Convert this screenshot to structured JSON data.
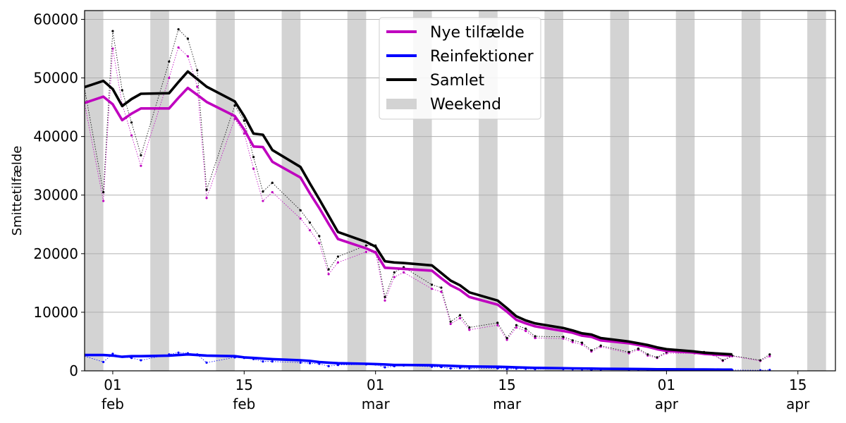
{
  "chart_data": {
    "type": "line",
    "title": "",
    "xlabel": "",
    "ylabel": "Smittetilfælde",
    "x_range": [
      "2022-01-29",
      "2022-04-19"
    ],
    "ylim": [
      0,
      61500
    ],
    "y_ticks": [
      0,
      10000,
      20000,
      30000,
      40000,
      50000,
      60000
    ],
    "x_ticks": [
      {
        "date": "2022-02-01",
        "day": "01",
        "month": "feb"
      },
      {
        "date": "2022-02-15",
        "day": "15",
        "month": "feb"
      },
      {
        "date": "2022-03-01",
        "day": "01",
        "month": "mar"
      },
      {
        "date": "2022-03-15",
        "day": "15",
        "month": "mar"
      },
      {
        "date": "2022-04-01",
        "day": "01",
        "month": "apr"
      },
      {
        "date": "2022-04-15",
        "day": "15",
        "month": "apr"
      }
    ],
    "grid": "horizontal",
    "legend_position": "top-center",
    "weekends": [
      "2022-01-29",
      "2022-02-05",
      "2022-02-12",
      "2022-02-19",
      "2022-02-26",
      "2022-03-05",
      "2022-03-12",
      "2022-03-19",
      "2022-03-26",
      "2022-04-02",
      "2022-04-09",
      "2022-04-16"
    ],
    "legend": [
      {
        "label": "Nye tilfælde",
        "color": "#bf00bf",
        "kind": "line"
      },
      {
        "label": "Reinfektioner",
        "color": "#0000ff",
        "kind": "line"
      },
      {
        "label": "Samlet",
        "color": "#000000",
        "kind": "line"
      },
      {
        "label": "Weekend",
        "color": "#d3d3d3",
        "kind": "patch"
      }
    ],
    "series": [
      {
        "name": "Nye tilfælde",
        "role": "rolling_mean",
        "color": "#bf00bf",
        "x": [
          "2022-01-28",
          "2022-01-31",
          "2022-02-01",
          "2022-02-02",
          "2022-02-03",
          "2022-02-04",
          "2022-02-07",
          "2022-02-08",
          "2022-02-09",
          "2022-02-10",
          "2022-02-11",
          "2022-02-14",
          "2022-02-15",
          "2022-02-16",
          "2022-02-17",
          "2022-02-18",
          "2022-02-21",
          "2022-02-22",
          "2022-02-23",
          "2022-02-24",
          "2022-02-25",
          "2022-02-28",
          "2022-03-01",
          "2022-03-02",
          "2022-03-03",
          "2022-03-04",
          "2022-03-07",
          "2022-03-08",
          "2022-03-09",
          "2022-03-10",
          "2022-03-11",
          "2022-03-14",
          "2022-03-15",
          "2022-03-16",
          "2022-03-17",
          "2022-03-18",
          "2022-03-21",
          "2022-03-22",
          "2022-03-23",
          "2022-03-24",
          "2022-03-25",
          "2022-03-28",
          "2022-03-29",
          "2022-03-30",
          "2022-03-31",
          "2022-04-01",
          "2022-04-04",
          "2022-04-05",
          "2022-04-06",
          "2022-04-07",
          "2022-04-08"
        ],
        "y": [
          45200,
          46800,
          45500,
          42800,
          43900,
          44800,
          44800,
          46600,
          48300,
          47100,
          45900,
          43500,
          41200,
          38300,
          38200,
          35700,
          33000,
          30300,
          27800,
          25100,
          22500,
          20900,
          20200,
          17600,
          17500,
          17400,
          17100,
          15800,
          14600,
          13800,
          12600,
          11300,
          10100,
          8700,
          8100,
          7600,
          6800,
          6500,
          6000,
          5800,
          5200,
          4700,
          4400,
          4100,
          3700,
          3400,
          3100,
          2900,
          2800,
          2700,
          2600
        ]
      },
      {
        "name": "Reinfektioner",
        "role": "rolling_mean",
        "color": "#0000ff",
        "x": [
          "2022-01-28",
          "2022-01-31",
          "2022-02-01",
          "2022-02-02",
          "2022-02-03",
          "2022-02-04",
          "2022-02-07",
          "2022-02-08",
          "2022-02-09",
          "2022-02-10",
          "2022-02-11",
          "2022-02-14",
          "2022-02-15",
          "2022-02-16",
          "2022-02-17",
          "2022-02-18",
          "2022-02-21",
          "2022-02-22",
          "2022-02-23",
          "2022-02-24",
          "2022-02-25",
          "2022-02-28",
          "2022-03-01",
          "2022-03-02",
          "2022-03-03",
          "2022-03-04",
          "2022-03-07",
          "2022-03-08",
          "2022-03-09",
          "2022-03-10",
          "2022-03-11",
          "2022-03-14",
          "2022-03-15",
          "2022-03-16",
          "2022-03-17",
          "2022-03-18",
          "2022-03-21",
          "2022-03-22",
          "2022-03-23",
          "2022-03-24",
          "2022-03-25",
          "2022-03-28",
          "2022-03-29",
          "2022-03-30",
          "2022-03-31",
          "2022-04-01",
          "2022-04-04",
          "2022-04-05",
          "2022-04-06",
          "2022-04-07",
          "2022-04-08"
        ],
        "y": [
          2700,
          2700,
          2600,
          2400,
          2500,
          2500,
          2600,
          2700,
          2800,
          2700,
          2600,
          2500,
          2300,
          2200,
          2100,
          2000,
          1800,
          1700,
          1500,
          1400,
          1300,
          1200,
          1150,
          1100,
          1000,
          1000,
          950,
          900,
          850,
          800,
          750,
          700,
          650,
          600,
          550,
          500,
          450,
          420,
          400,
          380,
          350,
          330,
          310,
          290,
          270,
          260,
          240,
          230,
          220,
          210,
          200
        ]
      },
      {
        "name": "Samlet",
        "role": "rolling_mean",
        "color": "#000000",
        "x": [
          "2022-01-28",
          "2022-01-31",
          "2022-02-01",
          "2022-02-02",
          "2022-02-03",
          "2022-02-04",
          "2022-02-07",
          "2022-02-08",
          "2022-02-09",
          "2022-02-10",
          "2022-02-11",
          "2022-02-14",
          "2022-02-15",
          "2022-02-16",
          "2022-02-17",
          "2022-02-18",
          "2022-02-21",
          "2022-02-22",
          "2022-02-23",
          "2022-02-24",
          "2022-02-25",
          "2022-02-28",
          "2022-03-01",
          "2022-03-02",
          "2022-03-03",
          "2022-03-04",
          "2022-03-07",
          "2022-03-08",
          "2022-03-09",
          "2022-03-10",
          "2022-03-11",
          "2022-03-14",
          "2022-03-15",
          "2022-03-16",
          "2022-03-17",
          "2022-03-18",
          "2022-03-21",
          "2022-03-22",
          "2022-03-23",
          "2022-03-24",
          "2022-03-25",
          "2022-03-28",
          "2022-03-29",
          "2022-03-30",
          "2022-03-31",
          "2022-04-01",
          "2022-04-04",
          "2022-04-05",
          "2022-04-06",
          "2022-04-07",
          "2022-04-08"
        ],
        "y": [
          47900,
          49500,
          48100,
          45200,
          46400,
          47300,
          47400,
          49300,
          51100,
          49800,
          48500,
          46000,
          43500,
          40500,
          40300,
          37700,
          34800,
          32000,
          29300,
          26500,
          23700,
          22000,
          21200,
          18700,
          18500,
          18400,
          18000,
          16700,
          15400,
          14600,
          13400,
          12000,
          10700,
          9300,
          8600,
          8100,
          7300,
          6900,
          6400,
          6200,
          5600,
          5000,
          4700,
          4400,
          4000,
          3700,
          3300,
          3100,
          3000,
          2900,
          2800
        ]
      },
      {
        "name": "Nye tilfælde",
        "role": "daily",
        "color": "#bf00bf",
        "x": [
          "2022-01-28",
          "2022-01-31",
          "2022-02-01",
          "2022-02-02",
          "2022-02-03",
          "2022-02-04",
          "2022-02-07",
          "2022-02-08",
          "2022-02-09",
          "2022-02-10",
          "2022-02-11",
          "2022-02-14",
          "2022-02-15",
          "2022-02-16",
          "2022-02-17",
          "2022-02-18",
          "2022-02-21",
          "2022-02-22",
          "2022-02-23",
          "2022-02-24",
          "2022-02-25",
          "2022-02-28",
          "2022-03-01",
          "2022-03-02",
          "2022-03-03",
          "2022-03-04",
          "2022-03-07",
          "2022-03-08",
          "2022-03-09",
          "2022-03-10",
          "2022-03-11",
          "2022-03-14",
          "2022-03-15",
          "2022-03-16",
          "2022-03-17",
          "2022-03-18",
          "2022-03-21",
          "2022-03-22",
          "2022-03-23",
          "2022-03-24",
          "2022-03-25",
          "2022-03-28",
          "2022-03-29",
          "2022-03-30",
          "2022-03-31",
          "2022-04-01",
          "2022-04-04",
          "2022-04-05",
          "2022-04-06",
          "2022-04-07",
          "2022-04-08",
          "2022-04-11",
          "2022-04-12"
        ],
        "y": [
          54000,
          29000,
          55000,
          45500,
          40200,
          35000,
          50000,
          55200,
          53700,
          48500,
          29500,
          43000,
          40500,
          34500,
          29000,
          30500,
          26000,
          24000,
          21800,
          16500,
          18500,
          20300,
          20300,
          12000,
          16000,
          16800,
          14000,
          13500,
          8000,
          9000,
          7000,
          7800,
          5300,
          7400,
          6800,
          5600,
          5500,
          4900,
          4500,
          3300,
          4100,
          3000,
          3600,
          2600,
          2200,
          3000,
          3000,
          3000,
          2700,
          1700,
          2500,
          1700,
          2500
        ]
      },
      {
        "name": "Reinfektioner",
        "role": "daily",
        "color": "#0000ff",
        "x": [
          "2022-01-28",
          "2022-01-31",
          "2022-02-01",
          "2022-02-02",
          "2022-02-03",
          "2022-02-04",
          "2022-02-07",
          "2022-02-08",
          "2022-02-09",
          "2022-02-10",
          "2022-02-11",
          "2022-02-14",
          "2022-02-15",
          "2022-02-16",
          "2022-02-17",
          "2022-02-18",
          "2022-02-21",
          "2022-02-22",
          "2022-02-23",
          "2022-02-24",
          "2022-02-25",
          "2022-02-28",
          "2022-03-01",
          "2022-03-02",
          "2022-03-03",
          "2022-03-04",
          "2022-03-07",
          "2022-03-08",
          "2022-03-09",
          "2022-03-10",
          "2022-03-11",
          "2022-03-14",
          "2022-03-15",
          "2022-03-16",
          "2022-03-17",
          "2022-03-18",
          "2022-03-21",
          "2022-03-22",
          "2022-03-23",
          "2022-03-24",
          "2022-03-25",
          "2022-03-28",
          "2022-03-29",
          "2022-03-30",
          "2022-03-31",
          "2022-04-01",
          "2022-04-04",
          "2022-04-05",
          "2022-04-06",
          "2022-04-07",
          "2022-04-08",
          "2022-04-11",
          "2022-04-12"
        ],
        "y": [
          3000,
          1500,
          2900,
          2400,
          2200,
          1800,
          2800,
          3100,
          3000,
          2800,
          1400,
          2300,
          2200,
          2000,
          1600,
          1600,
          1400,
          1300,
          1200,
          800,
          1000,
          1100,
          1100,
          600,
          800,
          900,
          700,
          650,
          400,
          500,
          400,
          420,
          300,
          380,
          350,
          300,
          300,
          270,
          250,
          180,
          230,
          170,
          200,
          150,
          120,
          170,
          170,
          170,
          150,
          100,
          140,
          100,
          150
        ]
      },
      {
        "name": "Samlet",
        "role": "daily",
        "color": "#000000",
        "x": [
          "2022-01-28",
          "2022-01-31",
          "2022-02-01",
          "2022-02-02",
          "2022-02-03",
          "2022-02-04",
          "2022-02-07",
          "2022-02-08",
          "2022-02-09",
          "2022-02-10",
          "2022-02-11",
          "2022-02-14",
          "2022-02-15",
          "2022-02-16",
          "2022-02-17",
          "2022-02-18",
          "2022-02-21",
          "2022-02-22",
          "2022-02-23",
          "2022-02-24",
          "2022-02-25",
          "2022-02-28",
          "2022-03-01",
          "2022-03-02",
          "2022-03-03",
          "2022-03-04",
          "2022-03-07",
          "2022-03-08",
          "2022-03-09",
          "2022-03-10",
          "2022-03-11",
          "2022-03-14",
          "2022-03-15",
          "2022-03-16",
          "2022-03-17",
          "2022-03-18",
          "2022-03-21",
          "2022-03-22",
          "2022-03-23",
          "2022-03-24",
          "2022-03-25",
          "2022-03-28",
          "2022-03-29",
          "2022-03-30",
          "2022-03-31",
          "2022-04-01",
          "2022-04-04",
          "2022-04-05",
          "2022-04-06",
          "2022-04-07",
          "2022-04-08",
          "2022-04-11",
          "2022-04-12"
        ],
        "y": [
          57000,
          30500,
          58000,
          47900,
          42400,
          36800,
          52800,
          58300,
          56700,
          51300,
          30900,
          45300,
          42700,
          36500,
          30600,
          32100,
          27400,
          25300,
          23000,
          17300,
          19500,
          21400,
          21400,
          12600,
          16800,
          17700,
          14700,
          14200,
          8400,
          9500,
          7400,
          8200,
          5600,
          7800,
          7200,
          5900,
          5800,
          5200,
          4800,
          3500,
          4300,
          3200,
          3800,
          2800,
          2300,
          3200,
          3200,
          3200,
          2900,
          1800,
          2600,
          1800,
          2800
        ]
      }
    ]
  }
}
